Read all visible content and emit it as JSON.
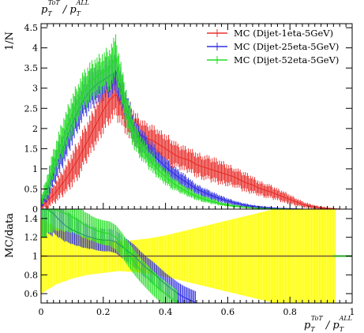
{
  "chart_data": [
    {
      "panel": "main",
      "type": "line",
      "title": "",
      "top_label": "p_T^ToT / p_T^ALL",
      "ylabel": "1/N",
      "xlabel": "",
      "xlim": [
        0,
        1
      ],
      "ylim": [
        0,
        4.6
      ],
      "yticks": [
        "0",
        "0.5",
        "1",
        "1.5",
        "2",
        "2.5",
        "3",
        "3.5",
        "4",
        "4.5"
      ],
      "legend_position": "top-right",
      "series": [
        {
          "name": "MC (Dijet-1eta-5GeV)",
          "color": "#e8302c",
          "x": [
            0.0,
            0.02,
            0.04,
            0.06,
            0.08,
            0.1,
            0.12,
            0.14,
            0.16,
            0.18,
            0.2,
            0.22,
            0.24,
            0.26,
            0.28,
            0.3,
            0.32,
            0.34,
            0.36,
            0.38,
            0.4,
            0.42,
            0.44,
            0.46,
            0.48,
            0.5,
            0.52,
            0.54,
            0.56,
            0.58,
            0.6,
            0.62,
            0.64,
            0.66,
            0.68,
            0.7,
            0.72,
            0.74,
            0.76,
            0.78,
            0.8,
            0.82,
            0.84,
            0.86,
            0.88,
            0.9,
            0.92,
            0.94,
            0.96
          ],
          "y": [
            0.05,
            0.2,
            0.35,
            0.55,
            0.75,
            1.0,
            1.25,
            1.55,
            1.85,
            2.15,
            2.45,
            2.7,
            2.85,
            2.6,
            2.25,
            2.0,
            1.85,
            1.75,
            1.7,
            1.6,
            1.5,
            1.4,
            1.3,
            1.25,
            1.2,
            1.1,
            1.05,
            1.0,
            0.95,
            0.9,
            0.85,
            0.8,
            0.72,
            0.65,
            0.6,
            0.52,
            0.47,
            0.42,
            0.36,
            0.3,
            0.24,
            0.18,
            0.12,
            0.08,
            0.05,
            0.03,
            0.02,
            0.01,
            0.0
          ],
          "err": [
            0.05,
            0.15,
            0.2,
            0.25,
            0.3,
            0.35,
            0.4,
            0.4,
            0.4,
            0.45,
            0.45,
            0.45,
            0.5,
            0.45,
            0.4,
            0.35,
            0.35,
            0.3,
            0.3,
            0.3,
            0.3,
            0.3,
            0.25,
            0.25,
            0.25,
            0.25,
            0.25,
            0.25,
            0.25,
            0.25,
            0.22,
            0.2,
            0.2,
            0.2,
            0.18,
            0.15,
            0.15,
            0.14,
            0.12,
            0.12,
            0.1,
            0.08,
            0.06,
            0.05,
            0.04,
            0.03,
            0.02,
            0.01,
            0.01
          ]
        },
        {
          "name": "MC (Dijet-25eta-5GeV)",
          "color": "#3030e0",
          "x": [
            0.0,
            0.02,
            0.04,
            0.06,
            0.08,
            0.1,
            0.12,
            0.14,
            0.16,
            0.18,
            0.2,
            0.22,
            0.24,
            0.26,
            0.28,
            0.3,
            0.32,
            0.34,
            0.36,
            0.38,
            0.4,
            0.42,
            0.44,
            0.46,
            0.48,
            0.5,
            0.52,
            0.54,
            0.56,
            0.58,
            0.6,
            0.62,
            0.64,
            0.66,
            0.68,
            0.7,
            0.72,
            0.74,
            0.76,
            0.78,
            0.8,
            0.82,
            0.84
          ],
          "y": [
            0.1,
            0.45,
            0.9,
            1.3,
            1.7,
            2.1,
            2.45,
            2.75,
            2.95,
            3.1,
            3.2,
            3.3,
            3.4,
            2.9,
            2.35,
            1.95,
            1.7,
            1.5,
            1.35,
            1.2,
            1.05,
            0.92,
            0.8,
            0.7,
            0.6,
            0.5,
            0.43,
            0.36,
            0.3,
            0.25,
            0.2,
            0.16,
            0.12,
            0.09,
            0.07,
            0.05,
            0.04,
            0.03,
            0.02,
            0.015,
            0.01,
            0.005,
            0.0
          ],
          "err": [
            0.08,
            0.2,
            0.3,
            0.35,
            0.4,
            0.4,
            0.4,
            0.4,
            0.4,
            0.4,
            0.4,
            0.4,
            0.45,
            0.4,
            0.35,
            0.3,
            0.28,
            0.25,
            0.22,
            0.2,
            0.18,
            0.16,
            0.15,
            0.14,
            0.12,
            0.1,
            0.1,
            0.09,
            0.08,
            0.07,
            0.06,
            0.05,
            0.04,
            0.04,
            0.03,
            0.03,
            0.02,
            0.02,
            0.01,
            0.01,
            0.01,
            0.005,
            0.0
          ]
        },
        {
          "name": "MC (Dijet-52eta-5GeV)",
          "color": "#22dd22",
          "x": [
            0.0,
            0.02,
            0.04,
            0.06,
            0.08,
            0.1,
            0.12,
            0.14,
            0.16,
            0.18,
            0.2,
            0.22,
            0.24,
            0.26,
            0.28,
            0.3,
            0.32,
            0.34,
            0.36,
            0.38,
            0.4,
            0.42,
            0.44,
            0.46,
            0.48,
            0.5,
            0.52,
            0.54,
            0.56,
            0.58,
            0.6,
            0.62,
            0.64,
            0.66,
            0.68,
            0.7,
            0.72,
            0.74,
            0.76,
            0.78,
            0.8
          ],
          "y": [
            0.15,
            0.6,
            1.1,
            1.55,
            1.95,
            2.35,
            2.7,
            2.95,
            3.15,
            3.3,
            3.4,
            3.5,
            3.75,
            3.0,
            2.3,
            1.85,
            1.55,
            1.32,
            1.12,
            0.95,
            0.8,
            0.67,
            0.56,
            0.47,
            0.39,
            0.32,
            0.26,
            0.21,
            0.17,
            0.13,
            0.1,
            0.08,
            0.06,
            0.045,
            0.03,
            0.02,
            0.015,
            0.01,
            0.005,
            0.003,
            0.0
          ],
          "err": [
            0.1,
            0.25,
            0.3,
            0.35,
            0.4,
            0.4,
            0.4,
            0.4,
            0.4,
            0.4,
            0.4,
            0.45,
            0.45,
            0.4,
            0.35,
            0.3,
            0.25,
            0.22,
            0.2,
            0.18,
            0.16,
            0.14,
            0.12,
            0.1,
            0.09,
            0.08,
            0.07,
            0.06,
            0.05,
            0.04,
            0.03,
            0.03,
            0.02,
            0.02,
            0.01,
            0.01,
            0.01,
            0.005,
            0.003,
            0.002,
            0.0
          ]
        }
      ]
    },
    {
      "panel": "ratio",
      "type": "line",
      "ylabel": "MC/data",
      "xlabel": "p_T^ToT / p_T^ALL",
      "xlim": [
        0,
        1
      ],
      "ylim": [
        0.5,
        1.5
      ],
      "yticks": [
        "0.6",
        "0.8",
        "1",
        "1.2",
        "1.4"
      ],
      "xticks": [
        "0",
        "0.2",
        "0.4",
        "0.6",
        "0.8",
        "1"
      ],
      "reference_line": 1,
      "band_color": "#ffff00",
      "band": {
        "x": [
          0.0,
          0.05,
          0.1,
          0.15,
          0.2,
          0.25,
          0.3,
          0.35,
          0.4,
          0.45,
          0.5,
          0.55,
          0.6,
          0.65,
          0.7,
          0.75,
          0.8,
          0.85,
          0.9,
          0.95
        ],
        "half_width": [
          0.4,
          0.3,
          0.24,
          0.2,
          0.18,
          0.16,
          0.17,
          0.19,
          0.22,
          0.26,
          0.3,
          0.34,
          0.38,
          0.42,
          0.46,
          0.5,
          0.55,
          0.6,
          0.7,
          0.8
        ]
      },
      "series": [
        {
          "name": "MC (Dijet-1eta-5GeV)",
          "color": "#e8302c",
          "x": [
            0.0,
            0.05,
            0.1,
            0.15,
            0.2,
            0.25,
            0.3,
            0.35,
            0.4,
            0.45,
            0.5,
            0.55,
            0.6,
            0.65,
            0.7,
            0.75,
            0.8,
            0.85,
            0.9,
            0.95
          ],
          "y": [
            1.0,
            1.0,
            1.0,
            1.0,
            1.0,
            1.0,
            1.0,
            1.0,
            1.0,
            1.0,
            1.0,
            1.0,
            1.0,
            1.0,
            1.0,
            1.0,
            1.0,
            1.0,
            1.0,
            1.0
          ]
        },
        {
          "name": "MC (Dijet-25eta-5GeV)",
          "color": "#3030e0",
          "x": [
            0.0,
            0.02,
            0.04,
            0.06,
            0.08,
            0.1,
            0.12,
            0.14,
            0.16,
            0.18,
            0.2,
            0.22,
            0.24,
            0.26,
            0.28,
            0.3,
            0.32,
            0.34,
            0.36,
            0.38,
            0.4,
            0.42,
            0.44,
            0.46,
            0.48,
            0.5
          ],
          "y": [
            1.5,
            1.5,
            1.45,
            1.38,
            1.32,
            1.28,
            1.25,
            1.22,
            1.2,
            1.18,
            1.17,
            1.17,
            1.15,
            1.1,
            1.05,
            1.0,
            0.93,
            0.87,
            0.82,
            0.76,
            0.7,
            0.65,
            0.6,
            0.56,
            0.53,
            0.5
          ],
          "err": [
            0.3,
            0.25,
            0.2,
            0.18,
            0.16,
            0.15,
            0.14,
            0.13,
            0.12,
            0.12,
            0.12,
            0.12,
            0.12,
            0.12,
            0.12,
            0.12,
            0.12,
            0.12,
            0.12,
            0.12,
            0.12,
            0.12,
            0.12,
            0.12,
            0.12,
            0.12
          ]
        },
        {
          "name": "MC (Dijet-52eta-5GeV)",
          "color": "#22dd22",
          "x": [
            0.0,
            0.02,
            0.04,
            0.06,
            0.08,
            0.1,
            0.12,
            0.14,
            0.16,
            0.18,
            0.2,
            0.22,
            0.24,
            0.26,
            0.28,
            0.3,
            0.32,
            0.34,
            0.36,
            0.38,
            0.4,
            0.42,
            0.44
          ],
          "y": [
            1.5,
            1.5,
            1.5,
            1.48,
            1.45,
            1.42,
            1.38,
            1.33,
            1.3,
            1.27,
            1.25,
            1.24,
            1.2,
            1.12,
            1.02,
            0.93,
            0.85,
            0.78,
            0.71,
            0.65,
            0.6,
            0.55,
            0.5
          ],
          "err": [
            0.3,
            0.25,
            0.22,
            0.2,
            0.18,
            0.16,
            0.15,
            0.14,
            0.13,
            0.13,
            0.13,
            0.13,
            0.13,
            0.13,
            0.13,
            0.13,
            0.13,
            0.13,
            0.13,
            0.13,
            0.13,
            0.13,
            0.13
          ]
        }
      ]
    }
  ]
}
